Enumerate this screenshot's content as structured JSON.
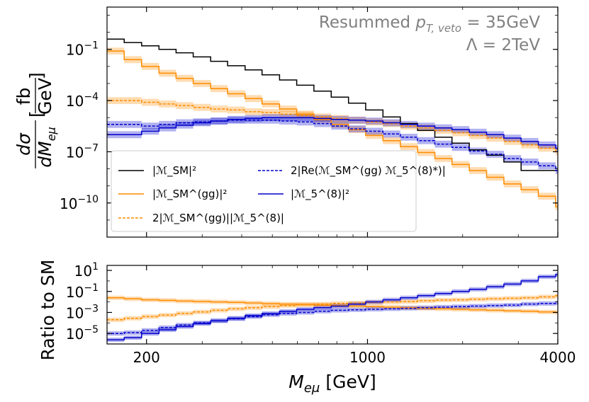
{
  "chart_data": [
    {
      "type": "line",
      "panel": "main",
      "yscale": "log",
      "xscale": "log",
      "xlim": [
        150,
        4000
      ],
      "ylim": [
        1e-12,
        30
      ],
      "ytick_labels": [
        "10^-10",
        "10^-7",
        "10^-4",
        "10^-1"
      ],
      "ylabel": "dσ/dM_eμ [fb/GeV]",
      "annotation": [
        "Resummed p_T,veto = 35GeV",
        "Λ = 2TeV"
      ],
      "legend_position": "lower-left",
      "bin_edges": [
        150,
        170,
        193,
        219,
        248,
        281,
        319,
        361,
        410,
        464,
        527,
        597,
        677,
        768,
        871,
        987,
        1119,
        1270,
        1440,
        1633,
        1851,
        2099,
        2381,
        2700,
        3061,
        3471,
        3937,
        4000
      ],
      "series": [
        {
          "name": "|M_SM|^2",
          "color": "#000000",
          "dashed": false,
          "band": false,
          "values": [
            0.4,
            0.25,
            0.16,
            0.1,
            0.063,
            0.036,
            0.02,
            0.011,
            0.0063,
            0.0032,
            0.0016,
            0.00079,
            0.00036,
            0.00016,
            7.1e-05,
            2.8e-05,
            1.1e-05,
            4.5e-06,
            1.8e-06,
            7.1e-07,
            3.2e-07,
            1.3e-07,
            6.3e-08,
            2.5e-08,
            8e-09,
            8e-09,
            8e-09
          ]
        },
        {
          "name": "|M_SM^(gg)|^2",
          "color": "#FF8C00",
          "dashed": false,
          "band": true,
          "values": [
            0.08,
            0.025,
            0.01,
            0.004,
            0.002,
            0.001,
            0.0005,
            0.00025,
            0.00013,
            6.3e-05,
            3.2e-05,
            1.6e-05,
            7.9e-06,
            4e-06,
            2e-06,
            9e-07,
            4.5e-07,
            2e-07,
            9e-08,
            4e-08,
            1.8e-08,
            7.9e-09,
            3.2e-09,
            1.3e-09,
            6e-10,
            2.5e-10,
            6e-11
          ]
        },
        {
          "name": "2|M_SM^(gg)||M_5^(8)|",
          "color": "#FF8C00",
          "dashed": true,
          "band": true,
          "values": [
            0.0001,
            0.0001,
            7.9e-05,
            6.3e-05,
            5e-05,
            4e-05,
            3.2e-05,
            2.8e-05,
            2.2e-05,
            2e-05,
            1.6e-05,
            1.4e-05,
            1.1e-05,
            8.9e-06,
            7.1e-06,
            5.6e-06,
            4.5e-06,
            3.2e-06,
            2.5e-06,
            1.8e-06,
            1.3e-06,
            8.9e-07,
            6.3e-07,
            4e-07,
            2.5e-07,
            1.6e-07,
            1e-07
          ]
        },
        {
          "name": "2|Re(M_SM^(gg) M_5^(8)*)|",
          "color": "#0000CD",
          "dashed": true,
          "band": true,
          "values": [
            4e-06,
            4e-06,
            3.2e-06,
            4e-06,
            5e-06,
            5.6e-06,
            6.3e-06,
            7.1e-06,
            7.1e-06,
            7.1e-06,
            6.3e-06,
            5.6e-06,
            4.5e-06,
            3.2e-06,
            2.2e-06,
            1.6e-06,
            1.1e-06,
            7.1e-07,
            4.5e-07,
            2.8e-07,
            1.8e-07,
            1.1e-07,
            7.1e-08,
            4e-08,
            2.5e-08,
            1.5e-08,
            8e-09
          ]
        },
        {
          "name": "|M_5^(8)|^2",
          "color": "#0000CD",
          "dashed": false,
          "band": true,
          "values": [
            1e-06,
            1e-06,
            1.6e-06,
            2.5e-06,
            3.6e-06,
            5e-06,
            6.3e-06,
            7.9e-06,
            8.9e-06,
            1e-05,
            1e-05,
            1e-05,
            8.9e-06,
            7.9e-06,
            7.1e-06,
            6.3e-06,
            5e-06,
            4e-06,
            3.2e-06,
            2.5e-06,
            2e-06,
            1.4e-06,
            1e-06,
            6.3e-07,
            4e-07,
            2.5e-07,
            1.6e-07
          ]
        }
      ]
    },
    {
      "type": "line",
      "panel": "ratio",
      "yscale": "log",
      "xscale": "log",
      "xlim": [
        150,
        4000
      ],
      "ylim": [
        1e-06,
        30
      ],
      "ytick_labels": [
        "10^-5",
        "10^-3",
        "10^-1",
        "10^1"
      ],
      "xtick_labels": [
        "200",
        "1000",
        "4000"
      ],
      "xlabel": "M_eμ [GeV]",
      "ylabel": "Ratio to SM",
      "series": [
        {
          "name": "|M_SM^(gg)|^2",
          "color": "#FF8C00",
          "dashed": false,
          "band": true,
          "values": [
            0.025,
            0.02,
            0.016,
            0.014,
            0.012,
            0.011,
            0.01,
            0.009,
            0.008,
            0.007,
            0.0063,
            0.0056,
            0.005,
            0.0045,
            0.004,
            0.0036,
            0.0032,
            0.0028,
            0.0025,
            0.0022,
            0.002,
            0.0018,
            0.0016,
            0.0014,
            0.0013,
            0.0011,
            0.001
          ]
        },
        {
          "name": "2|M_SM^(gg)||M_5^(8)|",
          "color": "#FF8C00",
          "dashed": true,
          "band": true,
          "values": [
            0.0002,
            0.00028,
            0.0004,
            0.00056,
            0.0008,
            0.0011,
            0.0016,
            0.0022,
            0.0028,
            0.0036,
            0.0045,
            0.0056,
            0.0063,
            0.0071,
            0.008,
            0.009,
            0.01,
            0.011,
            0.013,
            0.015,
            0.016,
            0.018,
            0.02,
            0.022,
            0.025,
            0.03,
            0.04
          ]
        },
        {
          "name": "2|Re(M_SM^(gg) M_5^(8)*)|",
          "color": "#0000CD",
          "dashed": true,
          "band": true,
          "values": [
            1e-05,
            1.2e-05,
            2e-05,
            3.6e-05,
            6.3e-05,
            0.0001,
            0.00016,
            0.00025,
            0.0004,
            0.0006,
            0.0008,
            0.001,
            0.0013,
            0.0016,
            0.0018,
            0.002,
            0.0022,
            0.0025,
            0.0028,
            0.0032,
            0.0036,
            0.004,
            0.0045,
            0.005,
            0.0063,
            0.0071,
            0.008
          ]
        },
        {
          "name": "|M_5^(8)|^2",
          "color": "#0000CD",
          "dashed": false,
          "band": true,
          "values": [
            2.5e-06,
            4e-06,
            1e-05,
            2.2e-05,
            4.5e-05,
            8.9e-05,
            0.00016,
            0.00028,
            0.0005,
            0.0008,
            0.0013,
            0.002,
            0.0028,
            0.004,
            0.0063,
            0.01,
            0.016,
            0.025,
            0.04,
            0.063,
            0.1,
            0.16,
            0.28,
            0.5,
            1.0,
            2.5,
            4.0
          ]
        }
      ]
    }
  ],
  "legend": [
    {
      "label_main": "|M",
      "label_sub": "SM",
      "label_tail": "|²",
      "color": "#000000",
      "dashed": false
    },
    {
      "label_main": "2|Re(M",
      "label_sub": "SM",
      "label_sup": "(gg)",
      "label_tail": "M₅⁽⁸⁾*)|",
      "color": "#0000CD",
      "dashed": true
    },
    {
      "label_main": "|M",
      "label_sub": "SM",
      "label_sup": "(gg)",
      "label_tail": "|²",
      "color": "#FF8C00",
      "dashed": false
    },
    {
      "label_main": "|M₅⁽⁸⁾|²",
      "color": "#0000CD",
      "dashed": false
    },
    {
      "label_main": "2|M",
      "label_sub": "SM",
      "label_sup": "(gg)",
      "label_tail": "||M₅⁽⁸⁾|",
      "color": "#FF8C00",
      "dashed": true
    }
  ],
  "text": {
    "annotation_line1_pre": "Resummed ",
    "annotation_line1_var": "p",
    "annotation_line1_sub": "T, veto",
    "annotation_line1_post": " = 35GeV",
    "annotation_line2": "Λ = 2TeV",
    "ylabel_num": "dσ",
    "ylabel_den": "dM",
    "ylabel_den_sub": "eμ",
    "ylabel_unit_num": "fb",
    "ylabel_unit_den": "GeV",
    "ratio_ylabel": "Ratio to SM",
    "xlabel_var": "M",
    "xlabel_sub": "eμ",
    "xlabel_unit": " [GeV]",
    "leg1": "|ℳ_SM|²",
    "leg2": "|ℳ_SM^(gg)|²",
    "leg3": "2|ℳ_SM^(gg)||ℳ_5^(8)|",
    "leg4": "2|Re(ℳ_SM^(gg) ℳ_5^(8)*)|",
    "leg5": "|ℳ_5^(8)|²"
  }
}
